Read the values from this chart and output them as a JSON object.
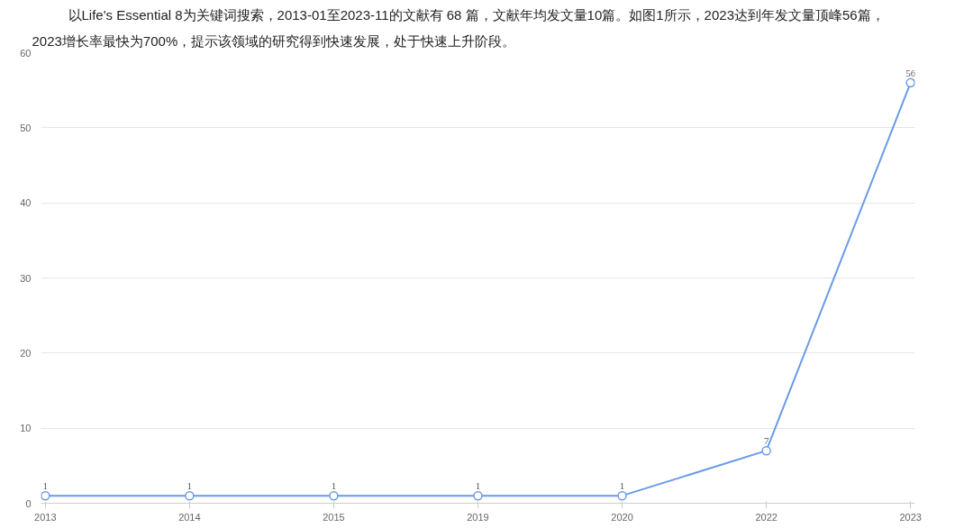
{
  "chart_data": {
    "type": "line",
    "annotations": [
      "以Life's Essential 8为关键词搜索，2013-01至2023-11的文献有 68 篇，文献年均发文量10篇。如图1所示，2023达到年发文量顶峰56篇，",
      "2023增长率最快为700%，提示该领域的研究得到快速发展，处于快速上升阶段。"
    ],
    "categories": [
      "2013",
      "2014",
      "2015",
      "2019",
      "2020",
      "2022",
      "2023"
    ],
    "series": [
      {
        "color": "#6a9be8",
        "values": [
          1,
          1,
          1,
          1,
          1,
          7,
          56
        ]
      }
    ],
    "ylim": [
      0,
      60
    ],
    "yticks": [
      0,
      10,
      20,
      30,
      40,
      50,
      60
    ],
    "grid": "y",
    "marker": "circle",
    "line_style": "solid",
    "data_labels": true
  }
}
